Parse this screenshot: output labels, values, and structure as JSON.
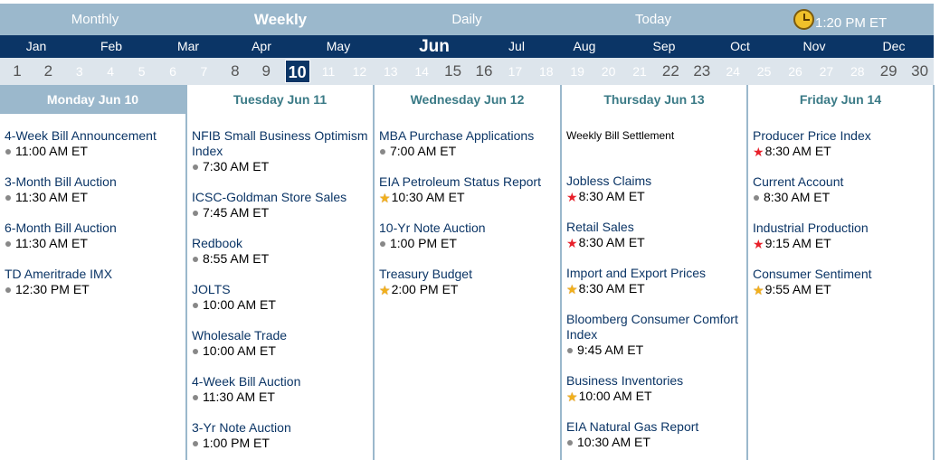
{
  "views": [
    {
      "label": "Monthly",
      "active": false
    },
    {
      "label": "Weekly",
      "active": true
    },
    {
      "label": "Daily",
      "active": false
    },
    {
      "label": "Today",
      "active": false
    }
  ],
  "clock": {
    "time": "1:20 PM ET"
  },
  "months": [
    "Jan",
    "Feb",
    "Mar",
    "Apr",
    "May",
    "Jun",
    "Jul",
    "Aug",
    "Sep",
    "Oct",
    "Nov",
    "Dec"
  ],
  "current_month": "Jun",
  "days": [
    "1",
    "2",
    "3",
    "4",
    "5",
    "6",
    "7",
    "8",
    "9",
    "10",
    "11",
    "12",
    "13",
    "14",
    "15",
    "16",
    "17",
    "18",
    "19",
    "20",
    "21",
    "22",
    "23",
    "24",
    "25",
    "26",
    "27",
    "28",
    "29",
    "30"
  ],
  "selected_day": "10",
  "weekend_days": [
    "1",
    "2",
    "8",
    "9",
    "15",
    "16",
    "22",
    "23",
    "29",
    "30"
  ],
  "columns": [
    {
      "header": "Monday Jun 10",
      "today": true,
      "events": [
        {
          "title": "4-Week Bill Announcement",
          "time": "11:00 AM ET",
          "marker": "dot"
        },
        {
          "title": "3-Month Bill Auction",
          "time": "11:30 AM ET",
          "marker": "dot"
        },
        {
          "title": "6-Month Bill Auction",
          "time": "11:30 AM ET",
          "marker": "dot"
        },
        {
          "title": "TD Ameritrade IMX",
          "time": "12:30 PM ET",
          "marker": "dot"
        }
      ]
    },
    {
      "header": "Tuesday Jun 11",
      "today": false,
      "events": [
        {
          "title": "NFIB Small Business Optimism Index",
          "time": "7:30 AM ET",
          "marker": "dot"
        },
        {
          "title": "ICSC-Goldman Store Sales",
          "time": "7:45 AM ET",
          "marker": "dot"
        },
        {
          "title": "Redbook",
          "time": "8:55 AM ET",
          "marker": "dot"
        },
        {
          "title": "JOLTS",
          "time": "10:00 AM ET",
          "marker": "dot"
        },
        {
          "title": "Wholesale Trade",
          "time": "10:00 AM ET",
          "marker": "dot"
        },
        {
          "title": "4-Week Bill Auction",
          "time": "11:30 AM ET",
          "marker": "dot"
        },
        {
          "title": "3-Yr Note Auction",
          "time": "1:00 PM ET",
          "marker": "dot"
        }
      ]
    },
    {
      "header": "Wednesday Jun 12",
      "today": false,
      "events": [
        {
          "title": "MBA Purchase Applications",
          "time": "7:00 AM ET",
          "marker": "dot"
        },
        {
          "title": "EIA Petroleum Status Report",
          "time": "10:30 AM ET",
          "marker": "gold-star"
        },
        {
          "title": "10-Yr Note Auction",
          "time": "1:00 PM ET",
          "marker": "dot"
        },
        {
          "title": "Treasury Budget",
          "time": "2:00 PM ET",
          "marker": "gold-star"
        }
      ]
    },
    {
      "header": "Thursday Jun 13",
      "today": false,
      "events": [
        {
          "title": "Weekly Bill Settlement",
          "time": "",
          "marker": "none",
          "plain": true
        },
        {
          "title": "Jobless Claims",
          "time": "8:30 AM ET",
          "marker": "red-star"
        },
        {
          "title": "Retail Sales",
          "time": "8:30 AM ET",
          "marker": "red-star"
        },
        {
          "title": "Import and Export Prices",
          "time": "8:30 AM ET",
          "marker": "gold-star"
        },
        {
          "title": "Bloomberg Consumer Comfort Index",
          "time": "9:45 AM ET",
          "marker": "dot"
        },
        {
          "title": "Business Inventories",
          "time": "10:00 AM ET",
          "marker": "gold-star"
        },
        {
          "title": "EIA Natural Gas Report",
          "time": "10:30 AM ET",
          "marker": "dot"
        }
      ]
    },
    {
      "header": "Friday Jun 14",
      "today": false,
      "events": [
        {
          "title": "Producer Price Index",
          "time": "8:30 AM ET",
          "marker": "red-star"
        },
        {
          "title": "Current Account",
          "time": "8:30 AM ET",
          "marker": "dot"
        },
        {
          "title": "Industrial Production",
          "time": "9:15 AM ET",
          "marker": "red-star"
        },
        {
          "title": "Consumer Sentiment",
          "time": "9:55 AM ET",
          "marker": "gold-star"
        }
      ]
    }
  ]
}
